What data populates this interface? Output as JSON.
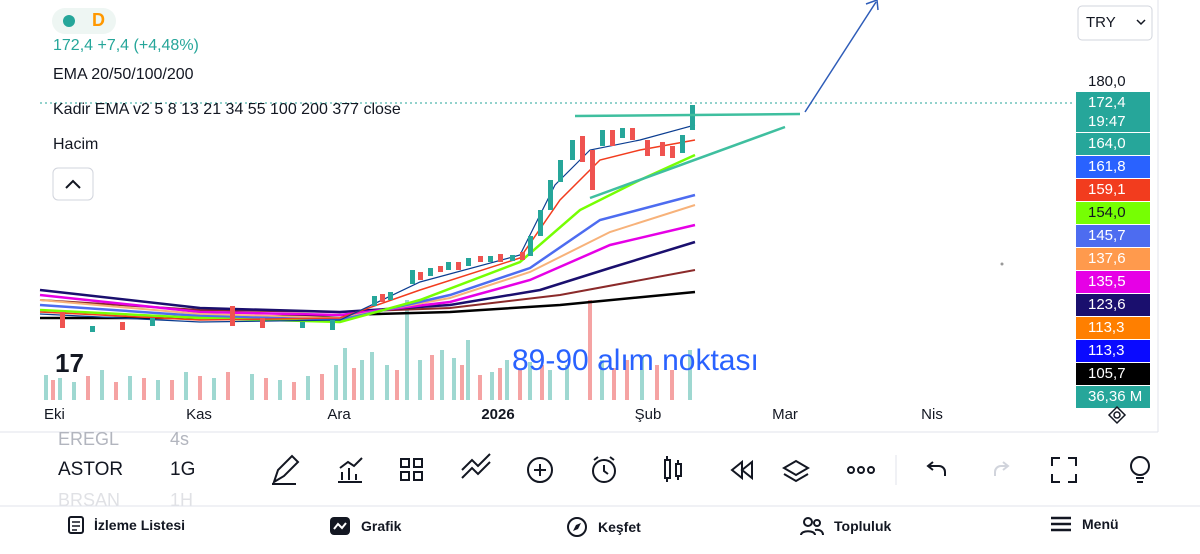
{
  "header": {
    "interval": "D",
    "quote": "172,4  +7,4 (+4,48%)",
    "indicators": [
      "EMA 20/50/100/200",
      "Kadir EMA v2 5 8 13 21 34 55 100 200 377 close",
      "Hacim"
    ],
    "currency": "TRY"
  },
  "price_scale": {
    "top_label": "180,0",
    "labels": [
      {
        "text": "172,4",
        "sub": "19:47",
        "color": "#26a69a",
        "text_color": "#ffffff"
      },
      {
        "text": "164,0",
        "color": "#26a69a",
        "text_color": "#ffffff"
      },
      {
        "text": "161,8",
        "color": "#2962ff",
        "text_color": "#ffffff"
      },
      {
        "text": "159,1",
        "color": "#f23c1e",
        "text_color": "#ffffff"
      },
      {
        "text": "154,0",
        "color": "#76ff03",
        "text_color": "#131722"
      },
      {
        "text": "145,7",
        "color": "#4d6cf0",
        "text_color": "#ffffff"
      },
      {
        "text": "137,6",
        "color": "#ff9a4d",
        "text_color": "#ffffff"
      },
      {
        "text": "135,5",
        "color": "#e600e6",
        "text_color": "#ffffff"
      },
      {
        "text": "123,6",
        "color": "#1a0f6e",
        "text_color": "#ffffff"
      },
      {
        "text": "113,3",
        "color": "#ff7f00",
        "text_color": "#ffffff"
      },
      {
        "text": "113,3",
        "color": "#0a0aff",
        "text_color": "#ffffff"
      },
      {
        "text": "105,7",
        "color": "#000000",
        "text_color": "#ffffff"
      },
      {
        "text": "36,36 M",
        "color": "#26a69a",
        "text_color": "#ffffff"
      }
    ]
  },
  "time_axis": [
    "Eki",
    "Kas",
    "Ara",
    "2026",
    "Şub",
    "Mar",
    "Nis"
  ],
  "annotation": "89-90 alım noktası",
  "symbols": [
    {
      "name": "EREGL",
      "interval": "4s"
    },
    {
      "name": "ASTOR",
      "interval": "1G"
    },
    {
      "name": "BRSAN",
      "interval": "1H"
    }
  ],
  "nav": [
    "İzleme Listesi",
    "Grafik",
    "Keşfet",
    "Topluluk",
    "Menü"
  ]
}
